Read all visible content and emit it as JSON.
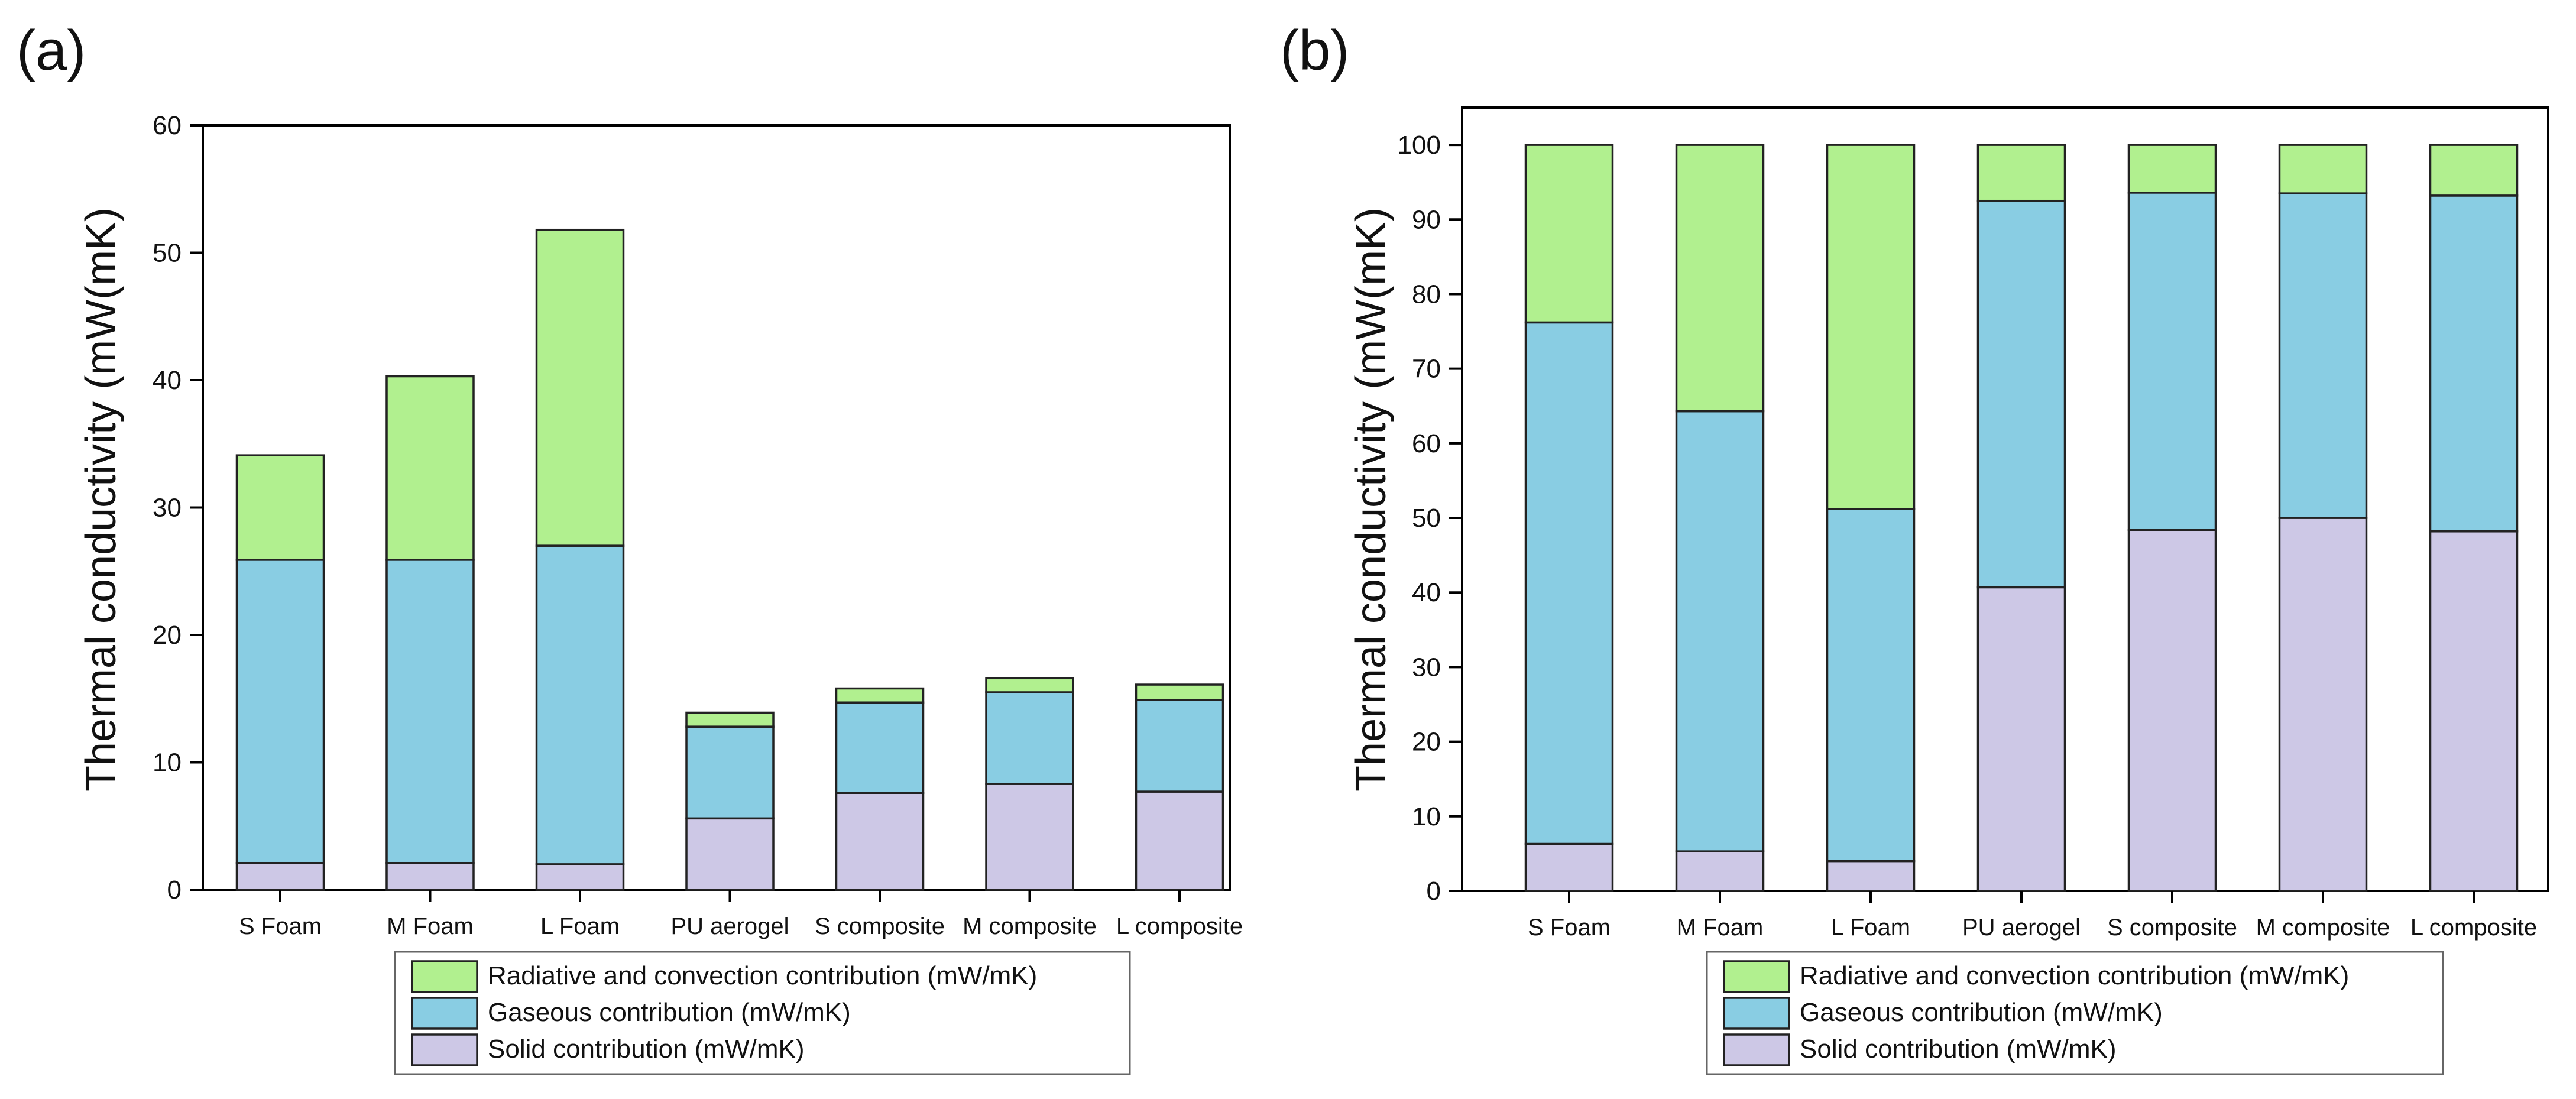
{
  "colors": {
    "solid": "#cdc8e6",
    "gaseous": "#89cde3",
    "radiative": "#b1f08f"
  },
  "legend": {
    "radiative": "Radiative and convection contribution (mW/mK)",
    "gaseous": "Gaseous contribution (mW/mK)",
    "solid": "Solid contribution (mW/mK)"
  },
  "chart_data": [
    {
      "panel_label": "(a)",
      "type": "bar",
      "stacked": true,
      "ylabel": "Thermal conductivity (mW(mK)",
      "xlabel": "",
      "ylim": [
        0,
        60
      ],
      "yticks": [
        0,
        10,
        20,
        30,
        40,
        50,
        60
      ],
      "categories": [
        "S Foam",
        "M Foam",
        "L Foam",
        "PU aerogel",
        "S composite",
        "M composite",
        "L composite"
      ],
      "series": [
        {
          "name": "Solid contribution (mW/mK)",
          "key": "solid",
          "values": [
            2.1,
            2.1,
            2.0,
            5.6,
            7.6,
            8.3,
            7.7
          ]
        },
        {
          "name": "Gaseous contribution (mW/mK)",
          "key": "gaseous",
          "values": [
            23.8,
            23.8,
            25.0,
            7.2,
            7.1,
            7.2,
            7.2
          ]
        },
        {
          "name": "Radiative and convection contribution (mW/mK)",
          "key": "radiative",
          "values": [
            8.2,
            14.4,
            24.8,
            1.1,
            1.1,
            1.1,
            1.2
          ]
        }
      ],
      "legend_position": "bottom"
    },
    {
      "panel_label": "(b)",
      "type": "bar",
      "stacked": true,
      "ylabel": "Thermal conductivity (mW(mK)",
      "xlabel": "",
      "ylim": [
        0,
        105
      ],
      "yticks": [
        0,
        10,
        20,
        30,
        40,
        50,
        60,
        70,
        80,
        90,
        100
      ],
      "categories": [
        "S Foam",
        "M Foam",
        "L Foam",
        "PU aerogel",
        "S composite",
        "M composite",
        "L composite"
      ],
      "series": [
        {
          "name": "Solid contribution (mW/mK)",
          "key": "solid",
          "values": [
            6.3,
            5.3,
            4.0,
            40.7,
            48.4,
            50.0,
            48.2
          ]
        },
        {
          "name": "Gaseous contribution (mW/mK)",
          "key": "gaseous",
          "values": [
            69.9,
            59.0,
            47.2,
            51.8,
            45.2,
            43.5,
            45.0
          ]
        },
        {
          "name": "Radiative and convection contribution (mW/mK)",
          "key": "radiative",
          "values": [
            23.8,
            35.7,
            48.8,
            7.5,
            6.4,
            6.5,
            6.8
          ]
        }
      ],
      "legend_position": "bottom"
    }
  ]
}
